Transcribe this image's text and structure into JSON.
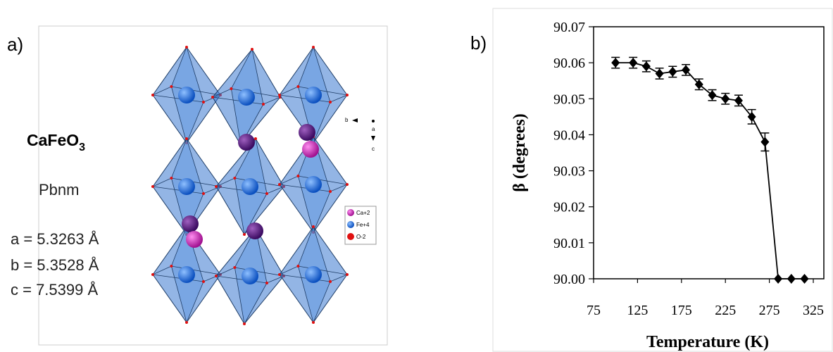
{
  "panel_a": {
    "label": "a)",
    "formula": {
      "base": "CaFeO",
      "subscript": "3"
    },
    "space_group": "Pbnm",
    "lattice": [
      "a = 5.3263 Å",
      "b = 5.3528 Å",
      "c = 7.5399 Å"
    ],
    "axes": [
      "b",
      "a",
      "c"
    ],
    "legend": [
      "Ca+2",
      "Fe+4",
      "O-2"
    ]
  },
  "chart_data": {
    "type": "line",
    "panel_label": "b)",
    "x_label": "Temperature (K)",
    "y_label": "β (degrees)",
    "x": [
      100,
      120,
      135,
      150,
      165,
      180,
      195,
      210,
      225,
      240,
      255,
      270,
      285,
      300,
      315
    ],
    "values": [
      90.06,
      90.06,
      90.059,
      90.057,
      90.0575,
      90.058,
      90.054,
      90.051,
      90.05,
      90.0495,
      90.045,
      90.038,
      90.0,
      90.0,
      90.0
    ],
    "errors": [
      0.0015,
      0.0015,
      0.0015,
      0.0015,
      0.0015,
      0.0015,
      0.0015,
      0.0015,
      0.0015,
      0.0015,
      0.002,
      0.0025,
      0,
      0,
      0
    ],
    "color": "#000000",
    "xlim": [
      75,
      337
    ],
    "ylim": [
      90,
      90.07
    ],
    "xticks": [
      75,
      125,
      175,
      225,
      275,
      325
    ],
    "yticks": [
      {
        "value": 90,
        "label": "90.00"
      },
      90.01,
      90.02,
      90.03,
      90.04,
      90.05,
      90.06,
      90.07
    ]
  }
}
